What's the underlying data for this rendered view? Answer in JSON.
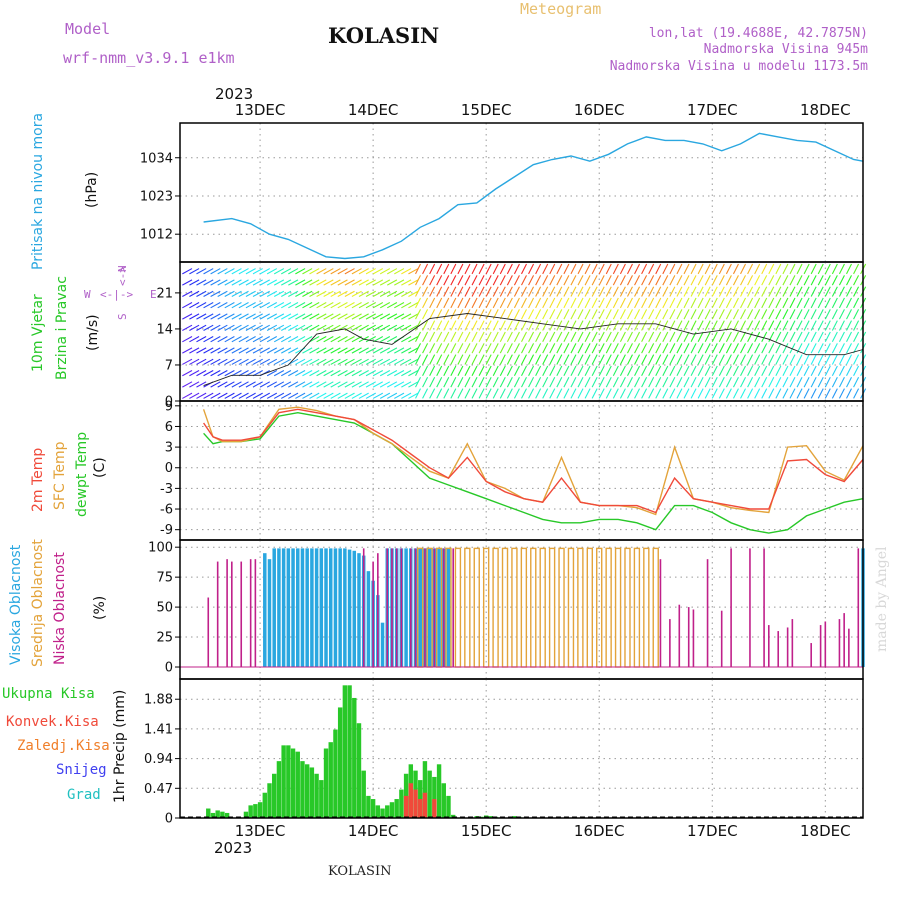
{
  "header": {
    "model_label": "Model",
    "model_name": "wrf-nmm_v3.9.1 e1km",
    "station": "KOLASIN",
    "product": "Meteogram",
    "coords": "lon,lat (19.4688E, 42.7875N)",
    "elevation": "Nadmorska Visina 945m",
    "model_elevation": "Nadmorska Visina u modelu 1173.5m",
    "footer_station": "KOLASIN",
    "watermark": "made by Angel",
    "year_top": "2023",
    "year_bottom": "2023",
    "dates": [
      "13DEC",
      "14DEC",
      "15DEC",
      "16DEC",
      "17DEC",
      "18DEC"
    ]
  },
  "colors": {
    "pressure": "#2aa7e0",
    "temp2m": "#f04a3a",
    "sfc_temp": "#e3a33a",
    "dewpt": "#28c828",
    "high_cloud": "#2aa7e0",
    "mid_cloud": "#e3a33a",
    "low_cloud": "#c0208a",
    "total_precip": "#28c828",
    "conv_precip": "#f04a3a",
    "frozen_precip": "#f07f2a",
    "snow": "#4040f0",
    "graupel": "#20c0c0",
    "header_purple": "#b060c8",
    "header_gold": "#e8c070"
  },
  "chart_data": [
    {
      "type": "line",
      "ylabel": [
        "Pritisak na nivou mora",
        "(hPa)"
      ],
      "yticks": [
        1012,
        1023,
        1034
      ],
      "ylim": [
        1004,
        1044
      ],
      "x": [
        0,
        6,
        10,
        14,
        18,
        22,
        26,
        30,
        34,
        38,
        42,
        46,
        50,
        54,
        58,
        62,
        66,
        70,
        74,
        78,
        82,
        86,
        90,
        94,
        98,
        102,
        106,
        110,
        114,
        118,
        122,
        126,
        130,
        134,
        138,
        140
      ],
      "series": [
        {
          "values": [
            1015.5,
            1016.5,
            1015,
            1012,
            1010.5,
            1008,
            1005.5,
            1005,
            1005.5,
            1007.5,
            1010,
            1014,
            1016.5,
            1020.5,
            1021,
            1025,
            1028.5,
            1032,
            1033.5,
            1034.5,
            1033,
            1035,
            1038,
            1040,
            1039,
            1039,
            1038,
            1036,
            1038,
            1041,
            1040,
            1039,
            1038.5,
            1036,
            1033.5,
            1033
          ]
        }
      ]
    },
    {
      "type": "barbs",
      "ylabel": [
        "10m Vjetar",
        "Brzina i Pravac",
        "(m/s)"
      ],
      "compass": [
        "N",
        "S",
        "W",
        "E"
      ],
      "yticks": [
        0,
        7,
        14,
        21
      ],
      "ylim": [
        0,
        27
      ],
      "x": [
        0,
        6,
        12,
        18,
        24,
        30,
        34,
        40,
        48,
        56,
        64,
        72,
        80,
        88,
        96,
        104,
        112,
        120,
        128,
        136,
        140
      ],
      "series": [
        {
          "values": [
            3,
            5,
            5,
            7,
            13,
            14,
            12,
            11,
            16,
            17,
            16,
            15,
            14,
            15,
            15,
            13,
            14,
            12,
            9,
            9,
            10
          ]
        }
      ]
    },
    {
      "type": "line",
      "ylabel": [
        "2m Temp",
        "SFC Temp",
        "dewpt Temp",
        "(C)"
      ],
      "yticks": [
        -9,
        -6,
        -3,
        0,
        3,
        6,
        9
      ],
      "ylim": [
        -10.5,
        9.7
      ],
      "x": [
        0,
        2,
        4,
        8,
        12,
        16,
        20,
        24,
        28,
        32,
        36,
        40,
        44,
        48,
        52,
        56,
        60,
        64,
        68,
        72,
        76,
        80,
        84,
        88,
        92,
        96,
        100,
        104,
        108,
        112,
        116,
        120,
        124,
        128,
        132,
        136,
        140
      ],
      "series": [
        {
          "name": "2m Temp",
          "values": [
            6.5,
            4.5,
            4,
            4,
            4.5,
            8,
            8.5,
            8,
            7.5,
            7,
            5.5,
            4,
            2,
            0,
            -1.5,
            1.5,
            -2,
            -3.5,
            -4.5,
            -5,
            -1.5,
            -5,
            -5.5,
            -5.5,
            -5.5,
            -6.5,
            -1.5,
            -4.5,
            -5,
            -5.5,
            -6,
            -6,
            1,
            1.2,
            -1,
            -2,
            1.2
          ]
        },
        {
          "name": "SFC Temp",
          "values": [
            8.5,
            4.5,
            3.8,
            3.8,
            4.5,
            8.5,
            8.8,
            8.3,
            7.5,
            7,
            5,
            3.5,
            1.5,
            -0.5,
            -1.5,
            3.5,
            -2,
            -3,
            -4.5,
            -5,
            1.5,
            -5,
            -5.5,
            -5.5,
            -5.8,
            -6.8,
            3,
            -4.5,
            -5,
            -5.8,
            -6.2,
            -6.5,
            3,
            3.2,
            -0.5,
            -1.8,
            3.2
          ]
        },
        {
          "name": "dewpt Temp",
          "values": [
            5,
            3.5,
            3.8,
            3.8,
            4.2,
            7.5,
            8,
            7.5,
            7,
            6.5,
            5,
            3.5,
            1,
            -1.5,
            -2.5,
            -3.5,
            -4.5,
            -5.5,
            -6.5,
            -7.5,
            -8,
            -8,
            -7.5,
            -7.5,
            -8,
            -9,
            -5.5,
            -5.5,
            -6.5,
            -8,
            -9,
            -9.5,
            -9,
            -7,
            -6,
            -5,
            -4.5
          ]
        }
      ]
    },
    {
      "type": "bar",
      "ylabel": [
        "Visoka Oblacnost",
        "Srednja Oblacnost",
        "Niska Oblacnost",
        "(%)"
      ],
      "yticks": [
        0,
        25,
        50,
        75,
        100
      ],
      "ylim": [
        0,
        100
      ],
      "series": [
        {
          "name": "Visoka Oblacnost",
          "x": [
            13,
            14,
            15,
            16,
            17,
            18,
            19,
            20,
            21,
            22,
            23,
            24,
            25,
            26,
            27,
            28,
            29,
            30,
            31,
            32,
            33,
            34,
            35,
            36,
            37,
            38,
            39,
            40,
            41,
            42,
            43,
            44,
            45,
            46,
            47,
            48,
            49,
            50,
            51,
            52,
            140
          ],
          "values": [
            95,
            90,
            99,
            99,
            99,
            99,
            99,
            99,
            99,
            99,
            99,
            99,
            99,
            99,
            99,
            99,
            99,
            99,
            98,
            97,
            95,
            93,
            80,
            72,
            60,
            37,
            99,
            99,
            99,
            99,
            99,
            99,
            99,
            99,
            99,
            99,
            99,
            99,
            99,
            99,
            99
          ]
        },
        {
          "name": "Srednja Oblacnost",
          "x": [
            46,
            48,
            50,
            52,
            54,
            56,
            58,
            60,
            62,
            64,
            66,
            68,
            70,
            72,
            74,
            76,
            78,
            80,
            82,
            84,
            86,
            88,
            90,
            92,
            94,
            96
          ],
          "values": [
            99,
            99,
            99,
            99,
            99,
            99,
            99,
            99,
            99,
            99,
            99,
            99,
            99,
            99,
            99,
            99,
            99,
            99,
            99,
            99,
            99,
            99,
            99,
            99,
            99,
            99
          ]
        },
        {
          "name": "Niska Oblacnost",
          "x": [
            1,
            3,
            5,
            6,
            8,
            10,
            11,
            34,
            36,
            37,
            39,
            40,
            41,
            42,
            44,
            45,
            47,
            49,
            51,
            53,
            97,
            99,
            101,
            103,
            104,
            107,
            110,
            112,
            116,
            119,
            120,
            122,
            124,
            125,
            129,
            131,
            132,
            135,
            136,
            137,
            139
          ],
          "values": [
            58,
            88,
            90,
            88,
            88,
            90,
            90,
            99,
            88,
            95,
            99,
            99,
            99,
            99,
            99,
            99,
            99,
            99,
            99,
            99,
            90,
            40,
            52,
            50,
            48,
            90,
            47,
            99,
            99,
            99,
            35,
            30,
            33,
            40,
            20,
            35,
            38,
            40,
            45,
            32,
            99
          ]
        }
      ]
    },
    {
      "type": "bar",
      "ylabel": [
        "1hr Precip (mm)"
      ],
      "legend": [
        "Ukupna Kisa",
        "Konvek.Kisa",
        "Zaledj.Kisa",
        "Snijeg",
        "Grad"
      ],
      "yticks": [
        0,
        0.47,
        0.94,
        1.41,
        1.88
      ],
      "ylim": [
        0,
        2.2
      ],
      "series": [
        {
          "name": "Ukupna Kisa",
          "x": [
            1,
            2,
            3,
            4,
            5,
            9,
            10,
            11,
            12,
            13,
            14,
            15,
            16,
            17,
            18,
            19,
            20,
            21,
            22,
            23,
            24,
            25,
            26,
            27,
            28,
            29,
            30,
            31,
            32,
            33,
            34,
            35,
            36,
            37,
            38,
            39,
            40,
            41,
            42,
            43,
            44,
            45,
            46,
            47,
            48,
            49,
            50,
            51,
            52,
            53,
            58,
            59,
            60,
            61,
            62,
            66,
            67
          ],
          "values": [
            0.15,
            0.08,
            0.12,
            0.1,
            0.08,
            0.1,
            0.2,
            0.22,
            0.25,
            0.4,
            0.55,
            0.7,
            0.9,
            1.15,
            1.15,
            1.1,
            1.05,
            0.9,
            0.85,
            0.8,
            0.7,
            0.6,
            1.1,
            1.2,
            1.4,
            1.75,
            2.1,
            2.1,
            1.9,
            1.5,
            0.75,
            0.35,
            0.3,
            0.2,
            0.15,
            0.2,
            0.25,
            0.3,
            0.45,
            0.7,
            0.85,
            0.75,
            0.6,
            0.9,
            0.75,
            0.65,
            0.85,
            0.55,
            0.35,
            0.05,
            0.03,
            0.02,
            0.04,
            0.03,
            0.02,
            0.03,
            0.02
          ]
        },
        {
          "name": "Konvek.Kisa",
          "x": [
            43,
            44,
            45,
            46,
            47,
            49
          ],
          "values": [
            0.35,
            0.55,
            0.45,
            0.3,
            0.4,
            0.3
          ]
        }
      ]
    }
  ]
}
